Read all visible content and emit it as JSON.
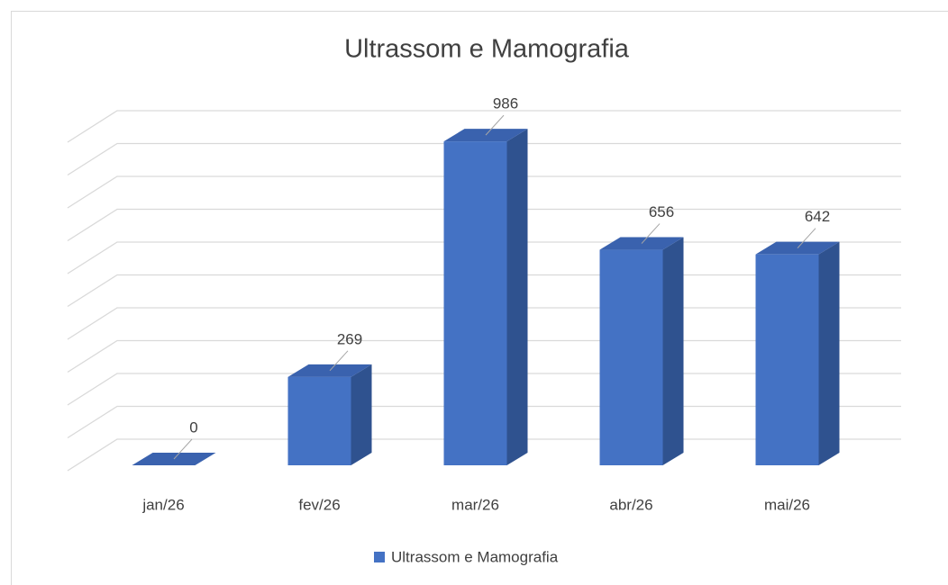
{
  "chart_data": {
    "type": "bar3d",
    "title": "Ultrassom e Mamografia",
    "categories": [
      "jan/26",
      "fev/26",
      "mar/26",
      "abr/26",
      "mai/26"
    ],
    "series": [
      {
        "name": "Ultrassom e Mamografia",
        "color": "#4472c4",
        "values": [
          0,
          269,
          986,
          656,
          642
        ]
      }
    ],
    "ylim": [
      0,
      1000
    ],
    "yticks": [
      0,
      100,
      200,
      300,
      400,
      500,
      600,
      700,
      800,
      900,
      1000
    ],
    "grid": true,
    "legend": "bottom",
    "data_labels": true
  }
}
